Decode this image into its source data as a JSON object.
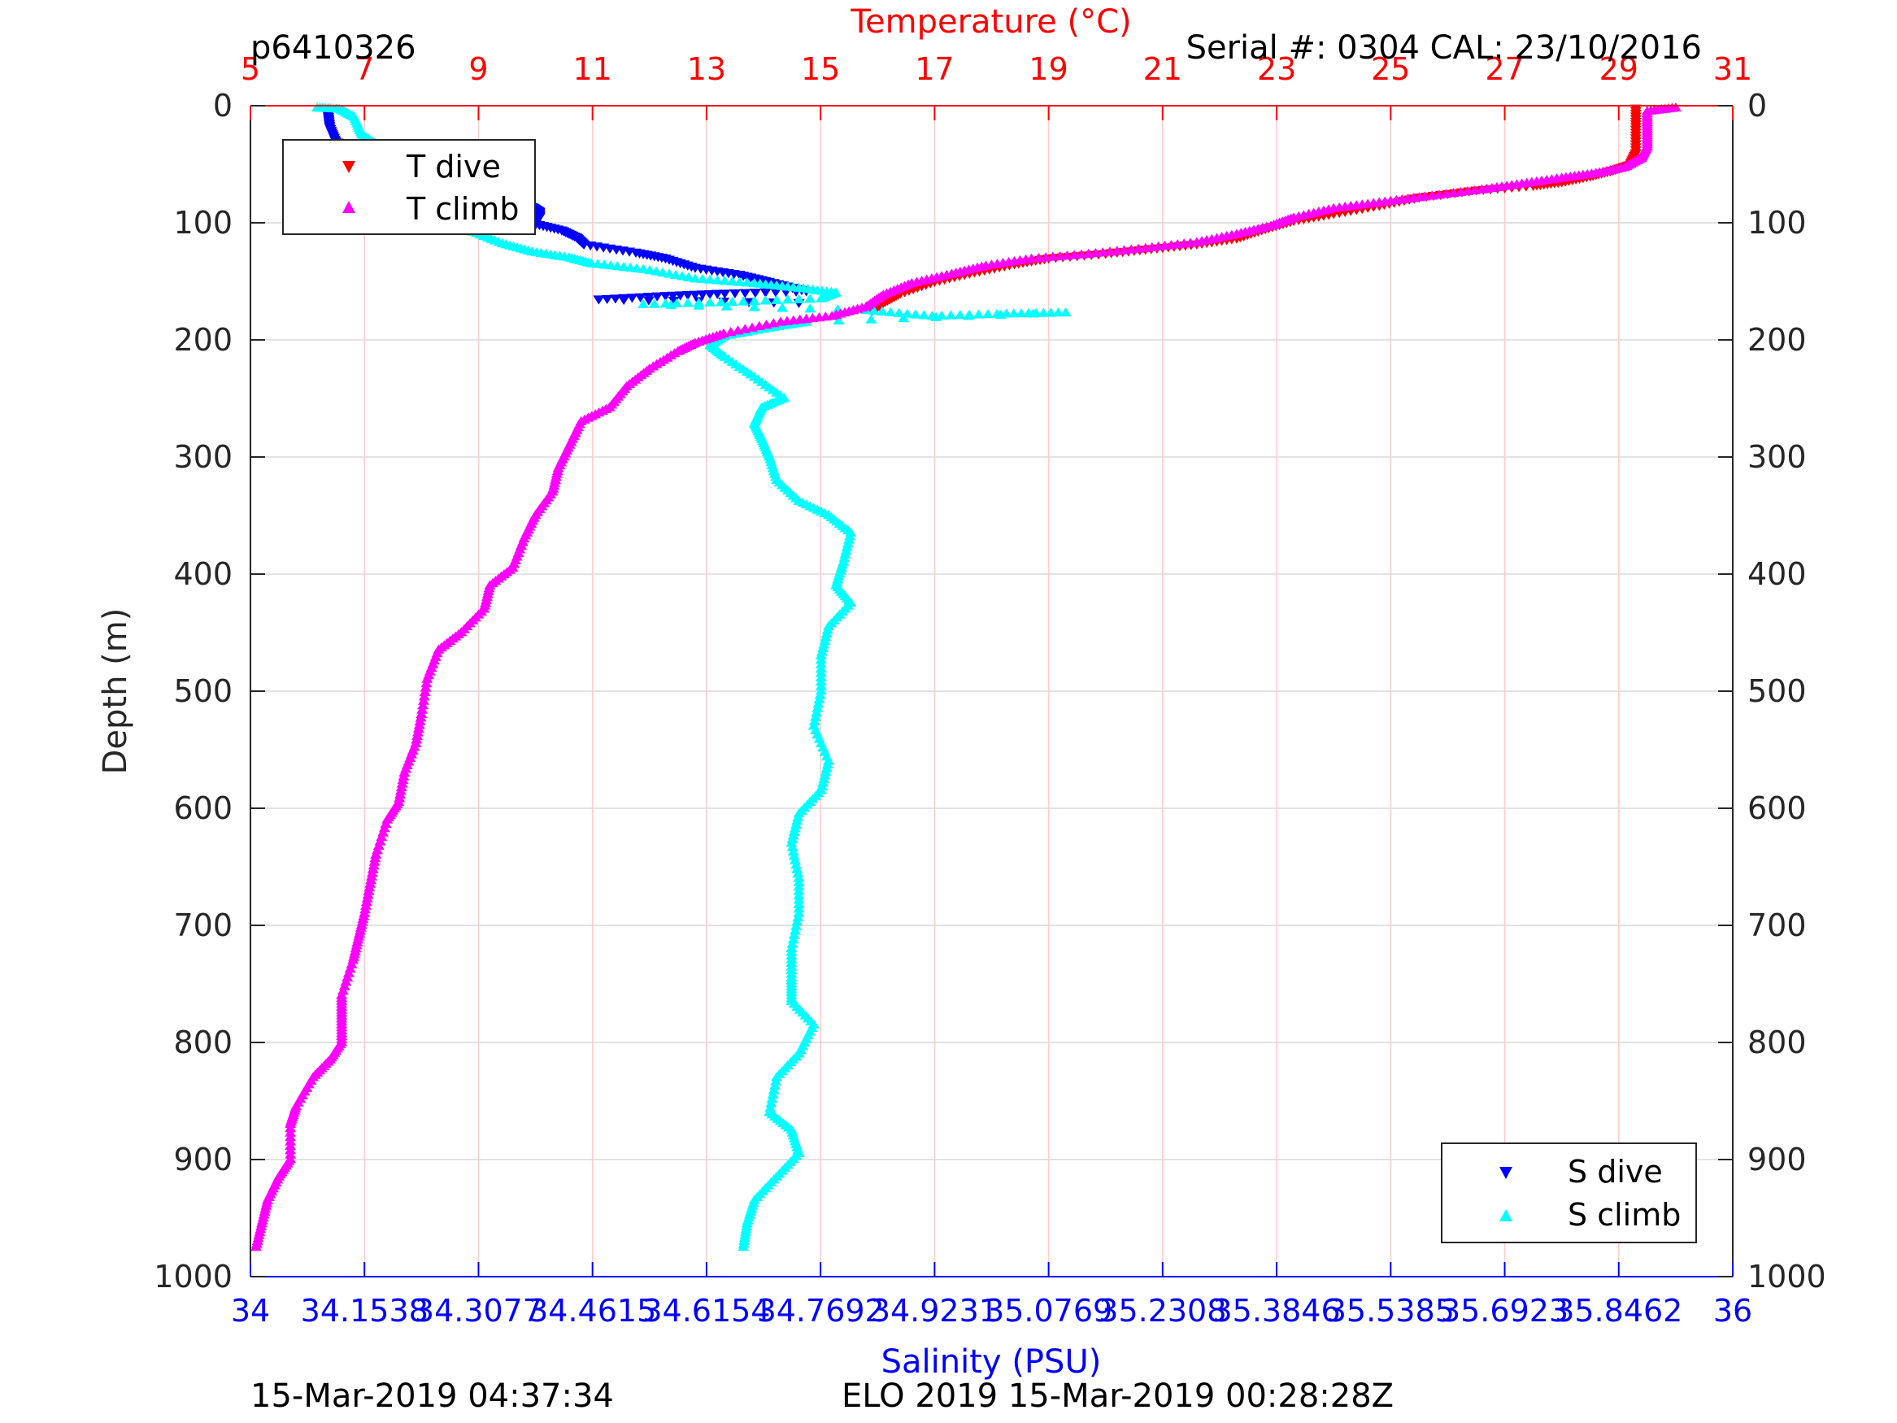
{
  "header": {
    "profile_id": "p6410326",
    "serial": "Serial #: 0304  CAL: 23/10/2016"
  },
  "footer": {
    "left": "15-Mar-2019 04:37:34",
    "right": "ELO 2019 15-Mar-2019 00:28:28Z"
  },
  "legend_temperature": [
    "T dive",
    "T climb"
  ],
  "legend_salinity": [
    "S dive",
    "S climb"
  ],
  "colors": {
    "t_dive": "#ff0000",
    "t_climb": "#ff00ff",
    "s_dive": "#0000ff",
    "s_climb": "#00ffff",
    "temperature_axis": "#ff0000",
    "salinity_axis": "#0000ff"
  },
  "chart_data": {
    "type": "scatter",
    "title": "",
    "ylabel": "Depth (m)",
    "ylim": [
      0,
      1000
    ],
    "y_reversed": true,
    "y_ticks": [
      "0",
      "100",
      "200",
      "300",
      "400",
      "500",
      "600",
      "700",
      "800",
      "900",
      "1000"
    ],
    "temperature_axis": {
      "label": "Temperature (°C)",
      "position": "top",
      "lim": [
        5,
        31
      ],
      "ticks": [
        "5",
        "7",
        "9",
        "11",
        "13",
        "15",
        "17",
        "19",
        "21",
        "23",
        "25",
        "27",
        "29",
        "31"
      ]
    },
    "salinity_axis": {
      "label": "Salinity (PSU)",
      "position": "bottom",
      "lim": [
        34,
        36
      ],
      "ticks": [
        "34",
        "34.1538",
        "34.3077",
        "34.4615",
        "34.6154",
        "34.7692",
        "34.9231",
        "35.0769",
        "35.2308",
        "35.3846",
        "35.5385",
        "35.6923",
        "35.8462",
        "36"
      ]
    },
    "grid": true,
    "series": [
      {
        "name": "T dive",
        "axis": "temperature",
        "marker": "triangle-down",
        "points": [
          [
            29.3,
            2
          ],
          [
            29.3,
            20
          ],
          [
            29.3,
            40
          ],
          [
            29.2,
            50
          ],
          [
            28.9,
            55
          ],
          [
            28.5,
            60
          ],
          [
            28.0,
            65
          ],
          [
            27.5,
            68
          ],
          [
            26.5,
            72
          ],
          [
            25.5,
            78
          ],
          [
            24.8,
            85
          ],
          [
            24.0,
            92
          ],
          [
            23.3,
            98
          ],
          [
            22.8,
            105
          ],
          [
            22.3,
            113
          ],
          [
            21.6,
            118
          ],
          [
            20.8,
            122
          ],
          [
            20.0,
            126
          ],
          [
            19.0,
            130
          ],
          [
            18.4,
            135
          ],
          [
            17.7,
            142
          ],
          [
            17.0,
            150
          ],
          [
            16.4,
            160
          ],
          [
            16.1,
            168
          ],
          [
            15.9,
            175
          ]
        ]
      },
      {
        "name": "T climb",
        "axis": "temperature",
        "marker": "triangle-up",
        "points": [
          [
            30.0,
            2
          ],
          [
            29.5,
            5
          ],
          [
            29.5,
            20
          ],
          [
            29.5,
            35
          ],
          [
            29.4,
            45
          ],
          [
            29.1,
            53
          ],
          [
            28.6,
            58
          ],
          [
            28.0,
            62
          ],
          [
            27.3,
            67
          ],
          [
            26.6,
            72
          ],
          [
            25.6,
            78
          ],
          [
            24.8,
            83
          ],
          [
            24.0,
            88
          ],
          [
            23.3,
            96
          ],
          [
            22.9,
            103
          ],
          [
            22.3,
            110
          ],
          [
            21.6,
            117
          ],
          [
            20.7,
            122
          ],
          [
            19.7,
            127
          ],
          [
            18.7,
            131
          ],
          [
            17.9,
            137
          ],
          [
            17.3,
            144
          ],
          [
            16.6,
            152
          ],
          [
            16.1,
            162
          ],
          [
            15.8,
            172
          ],
          [
            15.2,
            180
          ],
          [
            14.3,
            185
          ],
          [
            13.3,
            195
          ],
          [
            12.8,
            203
          ],
          [
            12.5,
            210
          ],
          [
            12.0,
            225
          ],
          [
            11.6,
            240
          ],
          [
            11.3,
            258
          ],
          [
            10.8,
            270
          ],
          [
            10.6,
            290
          ],
          [
            10.4,
            310
          ],
          [
            10.3,
            330
          ],
          [
            10.0,
            350
          ],
          [
            9.8,
            370
          ],
          [
            9.6,
            395
          ],
          [
            9.2,
            410
          ],
          [
            9.1,
            430
          ],
          [
            8.7,
            450
          ],
          [
            8.3,
            465
          ],
          [
            8.1,
            490
          ],
          [
            8.0,
            520
          ],
          [
            7.9,
            545
          ],
          [
            7.7,
            570
          ],
          [
            7.6,
            595
          ],
          [
            7.4,
            610
          ],
          [
            7.2,
            640
          ],
          [
            7.1,
            665
          ],
          [
            7.0,
            690
          ],
          [
            6.9,
            710
          ],
          [
            6.8,
            730
          ],
          [
            6.6,
            760
          ],
          [
            6.6,
            780
          ],
          [
            6.6,
            800
          ],
          [
            6.4,
            815
          ],
          [
            6.1,
            830
          ],
          [
            5.8,
            855
          ],
          [
            5.7,
            870
          ],
          [
            5.7,
            900
          ],
          [
            5.5,
            915
          ],
          [
            5.3,
            935
          ],
          [
            5.2,
            955
          ],
          [
            5.1,
            975
          ]
        ]
      },
      {
        "name": "S dive",
        "axis": "salinity",
        "marker": "triangle-down",
        "points": [
          [
            34.105,
            8
          ],
          [
            34.107,
            18
          ],
          [
            34.115,
            30
          ],
          [
            34.14,
            38
          ],
          [
            34.17,
            45
          ],
          [
            34.2,
            53
          ],
          [
            34.225,
            60
          ],
          [
            34.235,
            65
          ],
          [
            34.25,
            70
          ],
          [
            34.3,
            74
          ],
          [
            34.33,
            78
          ],
          [
            34.36,
            82
          ],
          [
            34.38,
            86
          ],
          [
            34.39,
            90
          ],
          [
            34.39,
            95
          ],
          [
            34.38,
            100
          ],
          [
            34.42,
            106
          ],
          [
            34.44,
            112
          ],
          [
            34.45,
            118
          ],
          [
            34.52,
            125
          ],
          [
            34.56,
            130
          ],
          [
            34.6,
            138
          ],
          [
            34.66,
            144
          ],
          [
            34.7,
            150
          ],
          [
            34.75,
            158
          ],
          [
            34.64,
            160
          ],
          [
            34.56,
            162
          ],
          [
            34.47,
            165
          ],
          [
            34.74,
            168
          ]
        ]
      },
      {
        "name": "S climb",
        "axis": "salinity",
        "marker": "triangle-up",
        "points": [
          [
            34.09,
            2
          ],
          [
            34.12,
            3
          ],
          [
            34.14,
            10
          ],
          [
            34.15,
            25
          ],
          [
            34.175,
            35
          ],
          [
            34.2,
            42
          ],
          [
            34.24,
            50
          ],
          [
            34.23,
            60
          ],
          [
            34.18,
            70
          ],
          [
            34.19,
            80
          ],
          [
            34.23,
            88
          ],
          [
            34.25,
            94
          ],
          [
            34.27,
            100
          ],
          [
            34.3,
            108
          ],
          [
            34.34,
            118
          ],
          [
            34.38,
            125
          ],
          [
            34.43,
            130
          ],
          [
            34.46,
            135
          ],
          [
            34.53,
            140
          ],
          [
            34.6,
            148
          ],
          [
            34.68,
            152
          ],
          [
            34.74,
            156
          ],
          [
            34.79,
            160
          ],
          [
            34.77,
            165
          ],
          [
            34.65,
            168
          ],
          [
            34.53,
            170
          ],
          [
            34.83,
            175
          ],
          [
            34.92,
            180
          ],
          [
            35.02,
            178
          ],
          [
            35.1,
            177
          ],
          [
            34.75,
            185
          ],
          [
            34.7,
            190
          ],
          [
            34.64,
            197
          ],
          [
            34.62,
            205
          ],
          [
            34.64,
            215
          ],
          [
            34.68,
            232
          ],
          [
            34.72,
            250
          ],
          [
            34.69,
            258
          ],
          [
            34.68,
            272
          ],
          [
            34.69,
            285
          ],
          [
            34.7,
            300
          ],
          [
            34.71,
            320
          ],
          [
            34.74,
            338
          ],
          [
            34.78,
            350
          ],
          [
            34.81,
            365
          ],
          [
            34.8,
            390
          ],
          [
            34.79,
            410
          ],
          [
            34.81,
            425
          ],
          [
            34.78,
            445
          ],
          [
            34.77,
            470
          ],
          [
            34.77,
            500
          ],
          [
            34.76,
            530
          ],
          [
            34.78,
            560
          ],
          [
            34.77,
            585
          ],
          [
            34.74,
            605
          ],
          [
            34.73,
            630
          ],
          [
            34.74,
            660
          ],
          [
            34.74,
            690
          ],
          [
            34.73,
            720
          ],
          [
            34.73,
            745
          ],
          [
            34.73,
            765
          ],
          [
            34.76,
            785
          ],
          [
            34.74,
            810
          ],
          [
            34.71,
            830
          ],
          [
            34.7,
            860
          ],
          [
            34.73,
            875
          ],
          [
            34.74,
            895
          ],
          [
            34.71,
            915
          ],
          [
            34.68,
            935
          ],
          [
            34.67,
            955
          ],
          [
            34.665,
            975
          ]
        ]
      }
    ]
  }
}
